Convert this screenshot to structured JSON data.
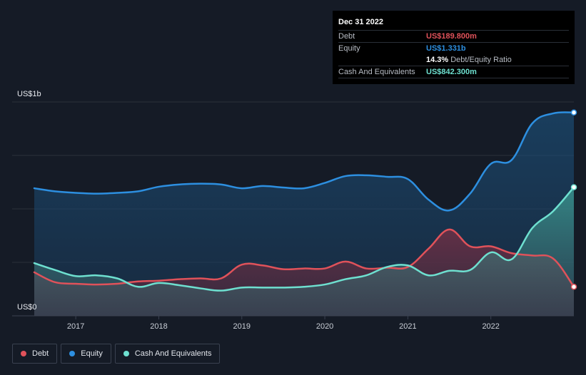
{
  "chart_data": {
    "type": "area",
    "title": "",
    "y_unit_labels": {
      "top": "US$1b",
      "bottom": "US$0"
    },
    "ylim": [
      0,
      1.4
    ],
    "xlim": [
      2016.5,
      2023.0
    ],
    "x_ticks": [
      "2017",
      "2018",
      "2019",
      "2020",
      "2021",
      "2022"
    ],
    "x_tick_values": [
      2017,
      2018,
      2019,
      2020,
      2021,
      2022
    ],
    "colors": {
      "debt": "#e0525a",
      "equity": "#2d8fe0",
      "cash": "#6ee0d0"
    },
    "series": [
      {
        "name": "Equity",
        "x": [
          2016.5,
          2016.75,
          2017.0,
          2017.25,
          2017.5,
          2017.75,
          2018.0,
          2018.25,
          2018.5,
          2018.75,
          2019.0,
          2019.25,
          2019.5,
          2019.75,
          2020.0,
          2020.25,
          2020.5,
          2020.75,
          2021.0,
          2021.25,
          2021.5,
          2021.75,
          2022.0,
          2022.25,
          2022.5,
          2022.75,
          2023.0
        ],
        "values": [
          0.835,
          0.815,
          0.805,
          0.8,
          0.805,
          0.815,
          0.845,
          0.86,
          0.865,
          0.86,
          0.835,
          0.85,
          0.84,
          0.835,
          0.87,
          0.915,
          0.92,
          0.91,
          0.895,
          0.76,
          0.69,
          0.8,
          0.995,
          1.02,
          1.26,
          1.325,
          1.331
        ]
      },
      {
        "name": "Debt",
        "x": [
          2016.5,
          2016.75,
          2017.0,
          2017.25,
          2017.5,
          2017.75,
          2018.0,
          2018.25,
          2018.5,
          2018.75,
          2019.0,
          2019.25,
          2019.5,
          2019.75,
          2020.0,
          2020.25,
          2020.5,
          2020.75,
          2021.0,
          2021.25,
          2021.5,
          2021.75,
          2022.0,
          2022.25,
          2022.5,
          2022.75,
          2023.0
        ],
        "values": [
          0.285,
          0.22,
          0.21,
          0.205,
          0.21,
          0.225,
          0.23,
          0.24,
          0.245,
          0.245,
          0.335,
          0.33,
          0.305,
          0.31,
          0.31,
          0.355,
          0.31,
          0.315,
          0.32,
          0.44,
          0.565,
          0.455,
          0.455,
          0.41,
          0.395,
          0.375,
          0.19
        ]
      },
      {
        "name": "Cash And Equivalents",
        "x": [
          2016.5,
          2016.75,
          2017.0,
          2017.25,
          2017.5,
          2017.75,
          2018.0,
          2018.25,
          2018.5,
          2018.75,
          2019.0,
          2019.25,
          2019.5,
          2019.75,
          2020.0,
          2020.25,
          2020.5,
          2020.75,
          2021.0,
          2021.25,
          2021.5,
          2021.75,
          2022.0,
          2022.25,
          2022.5,
          2022.75,
          2023.0
        ],
        "values": [
          0.345,
          0.3,
          0.26,
          0.265,
          0.245,
          0.19,
          0.215,
          0.2,
          0.18,
          0.165,
          0.185,
          0.185,
          0.185,
          0.19,
          0.205,
          0.24,
          0.265,
          0.32,
          0.33,
          0.265,
          0.295,
          0.3,
          0.415,
          0.37,
          0.575,
          0.685,
          0.842
        ]
      }
    ]
  },
  "tooltip": {
    "date": "Dec 31 2022",
    "debt_label": "Debt",
    "debt_value": "US$189.800m",
    "equity_label": "Equity",
    "equity_value": "US$1.331b",
    "ratio_value": "14.3%",
    "ratio_label": "Debt/Equity Ratio",
    "cash_label": "Cash And Equivalents",
    "cash_value": "US$842.300m"
  },
  "legend": [
    {
      "label": "Debt",
      "color": "#e0525a"
    },
    {
      "label": "Equity",
      "color": "#2d8fe0"
    },
    {
      "label": "Cash And Equivalents",
      "color": "#6ee0d0"
    }
  ]
}
